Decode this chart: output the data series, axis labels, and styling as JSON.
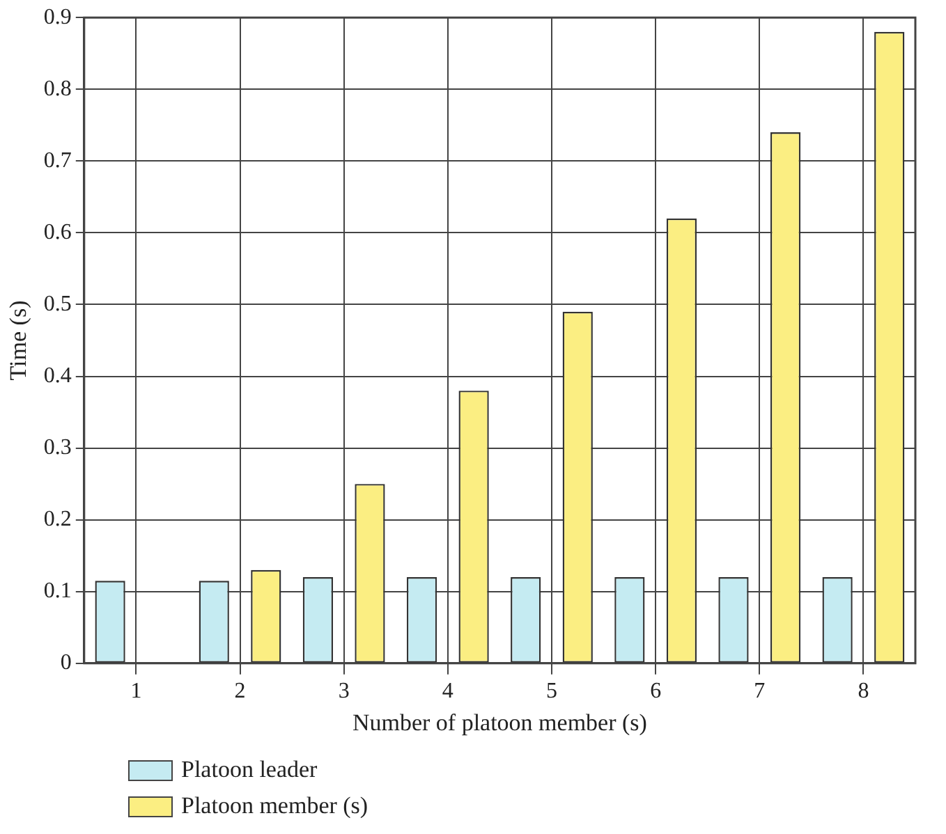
{
  "chart_data": {
    "type": "bar",
    "xlabel": "Number of platoon member (s)",
    "ylabel": "Time (s)",
    "categories": [
      "1",
      "2",
      "3",
      "4",
      "5",
      "6",
      "7",
      "8"
    ],
    "series": [
      {
        "name": "Platoon leader",
        "color": "#c5ebf2",
        "values": [
          0.115,
          0.115,
          0.12,
          0.12,
          0.12,
          0.12,
          0.12,
          0.12
        ]
      },
      {
        "name": "Platoon member (s)",
        "color": "#fbee82",
        "values": [
          null,
          0.13,
          0.25,
          0.38,
          0.49,
          0.62,
          0.74,
          0.88
        ]
      }
    ],
    "ylim": [
      0,
      0.9
    ],
    "yticks": [
      0,
      0.1,
      0.2,
      0.3,
      0.4,
      0.5,
      0.6,
      0.7,
      0.8,
      0.9
    ],
    "grid": true,
    "legend": "bottom left"
  }
}
